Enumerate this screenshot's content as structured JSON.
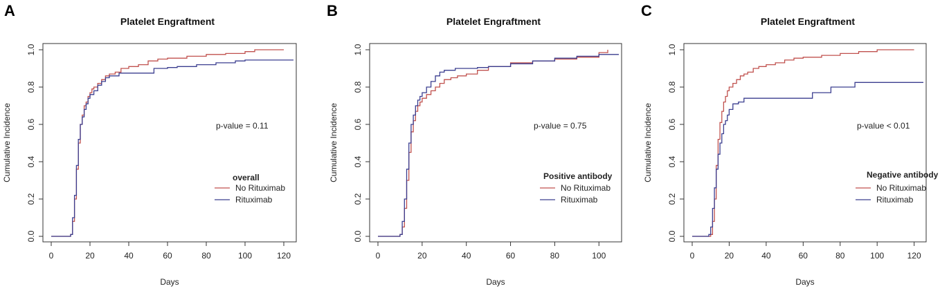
{
  "chart_data": [
    {
      "type": "line",
      "letter": "A",
      "title": "Platelet Engraftment",
      "xlabel": "Days",
      "ylabel": "Cumulative Incidence",
      "xlim": [
        0,
        125
      ],
      "ylim": [
        0,
        1.0
      ],
      "xticks": [
        0,
        20,
        40,
        60,
        80,
        100,
        120
      ],
      "yticks": [
        "0.0",
        "0.2",
        "0.4",
        "0.6",
        "0.8",
        "1.0"
      ],
      "annotation": "p-value = 0.11",
      "legend_title": "overall",
      "legend_title_size": 12,
      "colors": {
        "no_rituximab": "#c0504d",
        "rituximab": "#3a3d8f"
      },
      "series": [
        {
          "name": "No Rituximab",
          "x": [
            0,
            10,
            11,
            12,
            13,
            14,
            15,
            16,
            17,
            18,
            19,
            20,
            21,
            22,
            24,
            26,
            28,
            30,
            33,
            36,
            40,
            45,
            50,
            55,
            60,
            70,
            80,
            90,
            100,
            105,
            120
          ],
          "y": [
            0,
            0.01,
            0.08,
            0.2,
            0.36,
            0.5,
            0.6,
            0.65,
            0.7,
            0.72,
            0.75,
            0.77,
            0.79,
            0.8,
            0.82,
            0.84,
            0.86,
            0.87,
            0.88,
            0.9,
            0.91,
            0.92,
            0.94,
            0.95,
            0.955,
            0.965,
            0.975,
            0.98,
            0.99,
            1.0,
            1.0
          ]
        },
        {
          "name": "Rituximab",
          "x": [
            0,
            10,
            11,
            12,
            13,
            14,
            15,
            16,
            17,
            18,
            19,
            20,
            22,
            24,
            26,
            28,
            30,
            35,
            40,
            45,
            53,
            60,
            65,
            75,
            85,
            95,
            100,
            125
          ],
          "y": [
            0,
            0.01,
            0.1,
            0.22,
            0.38,
            0.52,
            0.6,
            0.64,
            0.68,
            0.71,
            0.74,
            0.76,
            0.78,
            0.81,
            0.83,
            0.85,
            0.86,
            0.875,
            0.875,
            0.875,
            0.9,
            0.905,
            0.91,
            0.92,
            0.93,
            0.94,
            0.945,
            0.945
          ]
        }
      ]
    },
    {
      "type": "line",
      "letter": "B",
      "title": "Platelet Engraftment",
      "xlabel": "Days",
      "ylabel": "Cumulative Incidence",
      "xlim": [
        0,
        109
      ],
      "ylim": [
        0,
        1.0
      ],
      "xticks": [
        0,
        20,
        40,
        60,
        80,
        100
      ],
      "yticks": [
        "0.0",
        "0.2",
        "0.4",
        "0.6",
        "0.8",
        "1.0"
      ],
      "annotation": "p-value = 0.75",
      "legend_title": "Positive antibody",
      "legend_title_size": 10,
      "colors": {
        "no_rituximab": "#c0504d",
        "rituximab": "#3a3d8f"
      },
      "series": [
        {
          "name": "No Rituximab",
          "x": [
            0,
            10,
            11,
            12,
            13,
            14,
            15,
            16,
            17,
            18,
            19,
            20,
            22,
            24,
            26,
            28,
            30,
            33,
            36,
            40,
            45,
            50,
            60,
            70,
            80,
            90,
            100,
            104
          ],
          "y": [
            0,
            0.01,
            0.05,
            0.15,
            0.3,
            0.45,
            0.56,
            0.62,
            0.67,
            0.7,
            0.72,
            0.74,
            0.76,
            0.78,
            0.8,
            0.82,
            0.84,
            0.85,
            0.86,
            0.87,
            0.89,
            0.91,
            0.93,
            0.94,
            0.95,
            0.96,
            0.985,
            1.0
          ]
        },
        {
          "name": "Rituximab",
          "x": [
            0,
            10,
            11,
            12,
            13,
            14,
            15,
            16,
            17,
            18,
            19,
            20,
            22,
            24,
            26,
            28,
            30,
            35,
            40,
            45,
            50,
            60,
            70,
            80,
            90,
            100,
            109
          ],
          "y": [
            0,
            0.01,
            0.08,
            0.2,
            0.36,
            0.5,
            0.6,
            0.65,
            0.7,
            0.73,
            0.75,
            0.77,
            0.8,
            0.83,
            0.86,
            0.88,
            0.89,
            0.9,
            0.9,
            0.905,
            0.91,
            0.925,
            0.94,
            0.955,
            0.965,
            0.975,
            0.975
          ]
        }
      ]
    },
    {
      "type": "line",
      "letter": "C",
      "title": "Platelet Engraftment",
      "xlabel": "Days",
      "ylabel": "Cumulative Incidence",
      "xlim": [
        0,
        125
      ],
      "ylim": [
        0,
        1.0
      ],
      "xticks": [
        0,
        20,
        40,
        60,
        80,
        100,
        120
      ],
      "yticks": [
        "0.0",
        "0.2",
        "0.4",
        "0.6",
        "0.8",
        "1.0"
      ],
      "annotation": "p-value < 0.01",
      "legend_title": "Negative antibody",
      "legend_title_size": 10,
      "colors": {
        "no_rituximab": "#c0504d",
        "rituximab": "#3a3d8f"
      },
      "series": [
        {
          "name": "No Rituximab",
          "x": [
            0,
            10,
            11,
            12,
            13,
            14,
            15,
            16,
            17,
            18,
            19,
            20,
            22,
            24,
            26,
            28,
            30,
            33,
            36,
            40,
            45,
            50,
            55,
            60,
            70,
            80,
            90,
            100,
            120
          ],
          "y": [
            0,
            0.01,
            0.08,
            0.2,
            0.38,
            0.52,
            0.61,
            0.67,
            0.72,
            0.75,
            0.78,
            0.8,
            0.82,
            0.84,
            0.86,
            0.87,
            0.88,
            0.9,
            0.91,
            0.92,
            0.93,
            0.945,
            0.955,
            0.96,
            0.97,
            0.98,
            0.99,
            1.0,
            1.0
          ]
        },
        {
          "name": "Rituximab",
          "x": [
            0,
            9,
            10,
            11,
            12,
            13,
            14,
            15,
            16,
            17,
            18,
            19,
            20,
            22,
            25,
            28,
            65,
            75,
            88,
            125
          ],
          "y": [
            0,
            0.01,
            0.05,
            0.15,
            0.26,
            0.36,
            0.44,
            0.5,
            0.55,
            0.6,
            0.62,
            0.65,
            0.68,
            0.71,
            0.72,
            0.74,
            0.77,
            0.8,
            0.825,
            0.825
          ]
        }
      ]
    }
  ]
}
